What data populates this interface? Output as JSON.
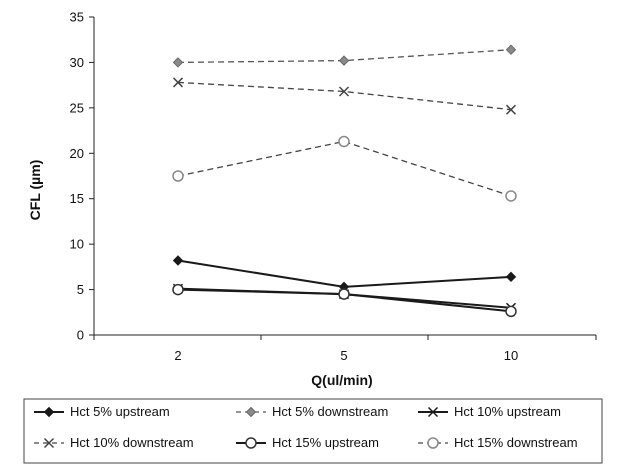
{
  "chart_data": {
    "type": "line",
    "title": "",
    "xlabel": "Q(ul/min)",
    "ylabel": "CFL (µm)",
    "categories": [
      "2",
      "5",
      "10"
    ],
    "ylim": [
      0,
      35
    ],
    "yticks": [
      0,
      5,
      10,
      15,
      20,
      25,
      30,
      35
    ],
    "grid": false,
    "legend": "bottom",
    "series": [
      {
        "name": "Hct 5% upstream",
        "values": [
          8.2,
          5.3,
          6.4
        ],
        "color": "#1a1a1a",
        "dash": "solid",
        "marker": "diamond"
      },
      {
        "name": "Hct 5% downstream",
        "values": [
          30.0,
          30.2,
          31.4
        ],
        "color": "#555555",
        "dash": "dashed",
        "marker": "diamond-gray"
      },
      {
        "name": "Hct 10% upstream",
        "values": [
          5.1,
          4.5,
          3.0
        ],
        "color": "#1a1a1a",
        "dash": "solid",
        "marker": "x"
      },
      {
        "name": "Hct 10% downstream",
        "values": [
          27.8,
          26.8,
          24.8
        ],
        "color": "#444444",
        "dash": "dashed",
        "marker": "x"
      },
      {
        "name": "Hct 15% upstream",
        "values": [
          5.0,
          4.5,
          2.6
        ],
        "color": "#1a1a1a",
        "dash": "solid",
        "marker": "circle"
      },
      {
        "name": "Hct 15% downstream",
        "values": [
          17.5,
          21.3,
          15.3
        ],
        "color": "#444444",
        "dash": "dashed",
        "marker": "circle"
      }
    ]
  }
}
